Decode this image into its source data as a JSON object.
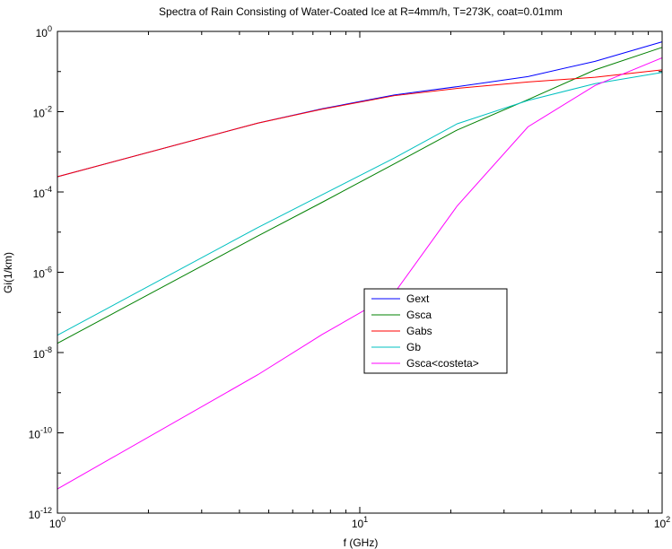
{
  "chart_data": {
    "type": "line",
    "title": "Spectra of Rain Consisting of Water-Coated Ice at R=4mm/h, T=273K, coat=0.01mm",
    "xlabel": "f (GHz)",
    "ylabel": "Gi(1/km)",
    "xscale": "log",
    "yscale": "log",
    "xlim": [
      1,
      100
    ],
    "ylim": [
      1e-12,
      1
    ],
    "x_ticks": [
      {
        "value": 1,
        "base": "10",
        "exp": "0"
      },
      {
        "value": 10,
        "base": "10",
        "exp": "1"
      },
      {
        "value": 100,
        "base": "10",
        "exp": "2"
      }
    ],
    "y_ticks": [
      {
        "value": 1e-12,
        "base": "10",
        "exp": "-12"
      },
      {
        "value": 1e-10,
        "base": "10",
        "exp": "-10"
      },
      {
        "value": 1e-08,
        "base": "10",
        "exp": "-8"
      },
      {
        "value": 1e-06,
        "base": "10",
        "exp": "-6"
      },
      {
        "value": 0.0001,
        "base": "10",
        "exp": "-4"
      },
      {
        "value": 0.01,
        "base": "10",
        "exp": "-2"
      },
      {
        "value": 1,
        "base": "10",
        "exp": "0"
      }
    ],
    "grid": false,
    "legend_position": "center-right",
    "series": [
      {
        "name": "Gext",
        "color": "#0000ff",
        "points": [
          [
            1,
            0.00024
          ],
          [
            4.6,
            0.0052
          ],
          [
            7.5,
            0.0118
          ],
          [
            13,
            0.026
          ],
          [
            21,
            0.042
          ],
          [
            36,
            0.075
          ],
          [
            60,
            0.18
          ],
          [
            100,
            0.55
          ]
        ]
      },
      {
        "name": "Gsca",
        "color": "#008000",
        "points": [
          [
            1,
            1.7e-08
          ],
          [
            4.6,
            8e-06
          ],
          [
            7.5,
            5.5e-05
          ],
          [
            13,
            0.0005
          ],
          [
            21,
            0.0035
          ],
          [
            36,
            0.02
          ],
          [
            60,
            0.11
          ],
          [
            100,
            0.4
          ]
        ]
      },
      {
        "name": "Gabs",
        "color": "#ff0000",
        "points": [
          [
            1,
            0.00024
          ],
          [
            4.6,
            0.0052
          ],
          [
            7.5,
            0.0115
          ],
          [
            13,
            0.025
          ],
          [
            21,
            0.038
          ],
          [
            36,
            0.055
          ],
          [
            60,
            0.072
          ],
          [
            100,
            0.11
          ]
        ]
      },
      {
        "name": "Gb",
        "color": "#00c0c0",
        "points": [
          [
            1,
            2.7e-08
          ],
          [
            4.6,
            1.3e-05
          ],
          [
            7.5,
            8.5e-05
          ],
          [
            13,
            0.0007
          ],
          [
            21,
            0.005
          ],
          [
            36,
            0.019
          ],
          [
            60,
            0.05
          ],
          [
            100,
            0.095
          ]
        ]
      },
      {
        "name": "Gsca<costeta>",
        "color": "#ff00ff",
        "points": [
          [
            1,
            4e-12
          ],
          [
            4.6,
            2.8e-09
          ],
          [
            7.5,
            2.8e-08
          ],
          [
            13,
            3e-07
          ],
          [
            21,
            4.5e-05
          ],
          [
            36,
            0.0042
          ],
          [
            60,
            0.045
          ],
          [
            100,
            0.22
          ]
        ]
      }
    ]
  }
}
